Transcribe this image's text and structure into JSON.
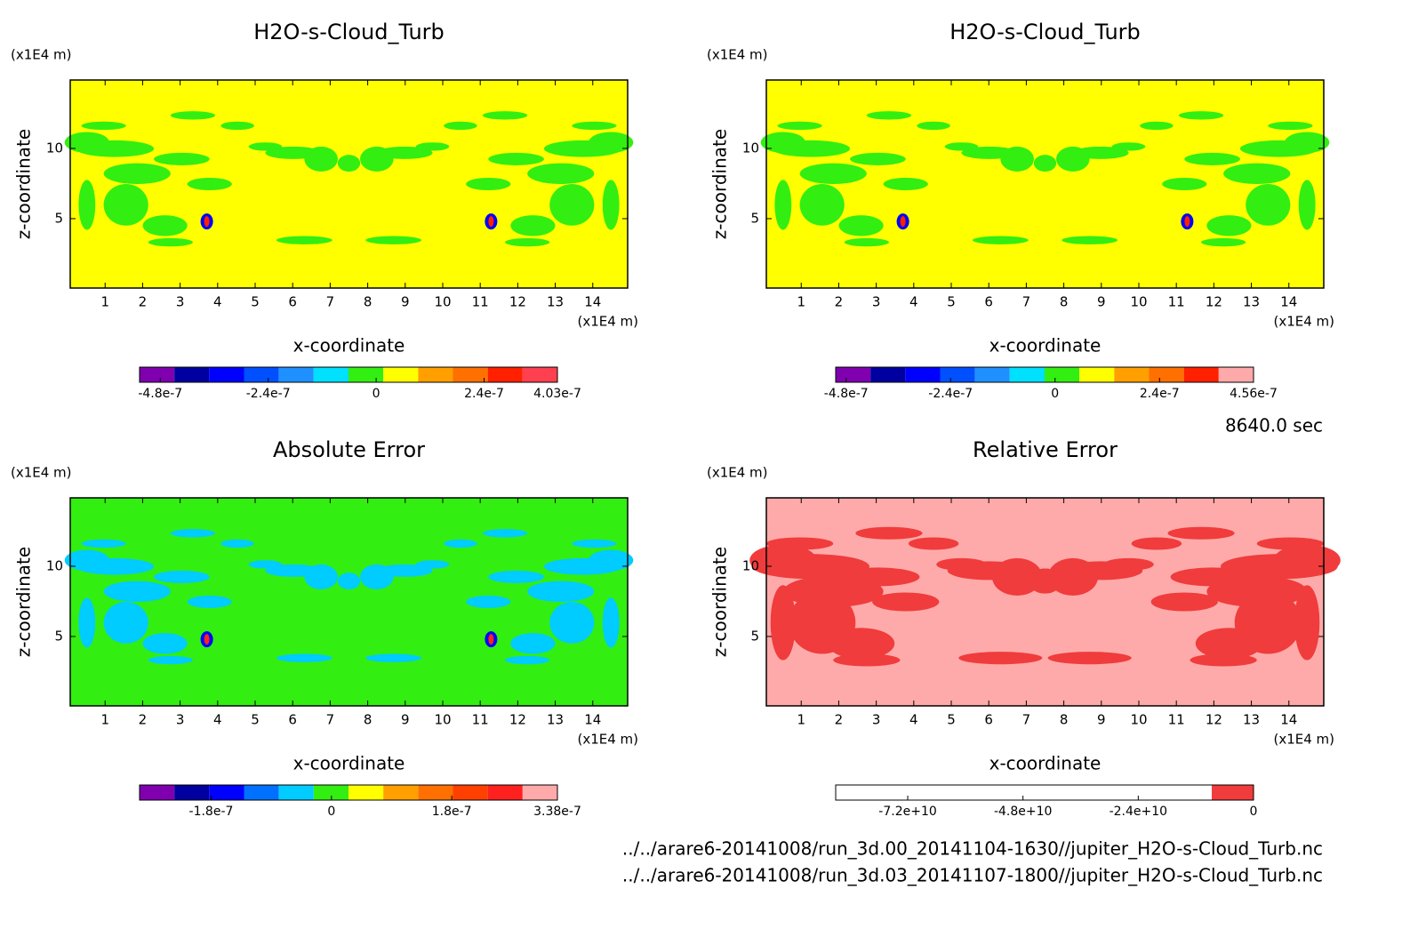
{
  "chart_data": [
    {
      "type": "contour",
      "title": "H2O-s-Cloud_Turb",
      "xlabel": "x-coordinate",
      "ylabel": "z-coordinate",
      "x_unit": "(x1E4 m)",
      "y_unit": "(x1E4 m)",
      "xlim": [
        0.07,
        14.93
      ],
      "ylim": [
        0.06,
        14.87
      ],
      "xticks": [
        1,
        2,
        3,
        4,
        5,
        6,
        7,
        8,
        9,
        10,
        11,
        12,
        13,
        14
      ],
      "yticks": [
        5,
        10
      ],
      "background": "#ffff00",
      "pattern_color": "#33ee11",
      "colorbar": {
        "clim": [
          -5.26e-07,
          4.03e-07
        ],
        "ticks": [
          -4.8e-07,
          -2.4e-07,
          0,
          2.4e-07,
          4.03e-07
        ],
        "colors": [
          "#8000b0",
          "#0000a0",
          "#0000ff",
          "#0050ff",
          "#1e90ff",
          "#00e0ff",
          "#33ee11",
          "#ffff00",
          "#ffa000",
          "#ff7000",
          "#ff2000",
          "#ff4050"
        ]
      }
    },
    {
      "type": "contour",
      "title": "H2O-s-Cloud_Turb",
      "xlabel": "x-coordinate",
      "ylabel": "z-coordinate",
      "x_unit": "(x1E4 m)",
      "y_unit": "(x1E4 m)",
      "xlim": [
        0.07,
        14.93
      ],
      "ylim": [
        0.06,
        14.87
      ],
      "xticks": [
        1,
        2,
        3,
        4,
        5,
        6,
        7,
        8,
        9,
        10,
        11,
        12,
        13,
        14
      ],
      "yticks": [
        5,
        10
      ],
      "background": "#ffff00",
      "pattern_color": "#33ee11",
      "colorbar": {
        "clim": [
          -5.04e-07,
          4.56e-07
        ],
        "ticks": [
          -4.8e-07,
          -2.4e-07,
          0,
          2.4e-07,
          4.56e-07
        ],
        "colors": [
          "#8000b0",
          "#0000a0",
          "#0000ff",
          "#0050ff",
          "#1e90ff",
          "#00e0ff",
          "#33ee11",
          "#ffff00",
          "#ffa000",
          "#ff7000",
          "#ff2000",
          "#ffaaaa"
        ]
      }
    },
    {
      "type": "contour",
      "title": "Absolute Error",
      "xlabel": "x-coordinate",
      "ylabel": "z-coordinate",
      "x_unit": "(x1E4 m)",
      "y_unit": "(x1E4 m)",
      "xlim": [
        0.07,
        14.93
      ],
      "ylim": [
        0.06,
        14.87
      ],
      "xticks": [
        1,
        2,
        3,
        4,
        5,
        6,
        7,
        8,
        9,
        10,
        11,
        12,
        13,
        14
      ],
      "yticks": [
        5,
        10
      ],
      "background": "#33ee11",
      "pattern_color": "#00ccff",
      "colorbar": {
        "clim": [
          -2.87e-07,
          3.38e-07
        ],
        "ticks": [
          -1.8e-07,
          0,
          1.8e-07,
          3.38e-07
        ],
        "colors": [
          "#8000b0",
          "#0000a0",
          "#0000ff",
          "#0070ff",
          "#00ccff",
          "#33ee11",
          "#ffff00",
          "#ffa000",
          "#ff7000",
          "#ff4000",
          "#ff2020",
          "#ffaaaa"
        ]
      }
    },
    {
      "type": "contour",
      "title": "Relative Error",
      "xlabel": "x-coordinate",
      "ylabel": "z-coordinate",
      "x_unit": "(x1E4 m)",
      "y_unit": "(x1E4 m)",
      "xlim": [
        0.07,
        14.93
      ],
      "ylim": [
        0.06,
        14.87
      ],
      "xticks": [
        1,
        2,
        3,
        4,
        5,
        6,
        7,
        8,
        9,
        10,
        11,
        12,
        13,
        14
      ],
      "yticks": [
        5,
        10
      ],
      "background": "#ffaaaa",
      "pattern_color": "#f03c3c",
      "colorbar": {
        "clim": [
          -87000000000.0,
          0
        ],
        "ticks": [
          {
            "value": -72000000000,
            "label": "-7.2e+10"
          },
          {
            "value": -48000000000,
            "label": "-4.8e+10"
          },
          {
            "value": -24000000000,
            "label": "-2.4e+10"
          },
          0
        ],
        "colors": [
          "#ffffff",
          "#ffffff",
          "#ffffff",
          "#ffffff",
          "#ffffff",
          "#ffffff",
          "#ffffff",
          "#ffffff",
          "#ffffff",
          "#f03c3c"
        ]
      }
    }
  ],
  "footer": {
    "time": "8640.0 sec",
    "files": [
      "../../arare6-20141008/run_3d.00_20141104-1630//jupiter_H2O-s-Cloud_Turb.nc",
      "../../arare6-20141008/run_3d.03_20141107-1800//jupiter_H2O-s-Cloud_Turb.nc"
    ]
  }
}
